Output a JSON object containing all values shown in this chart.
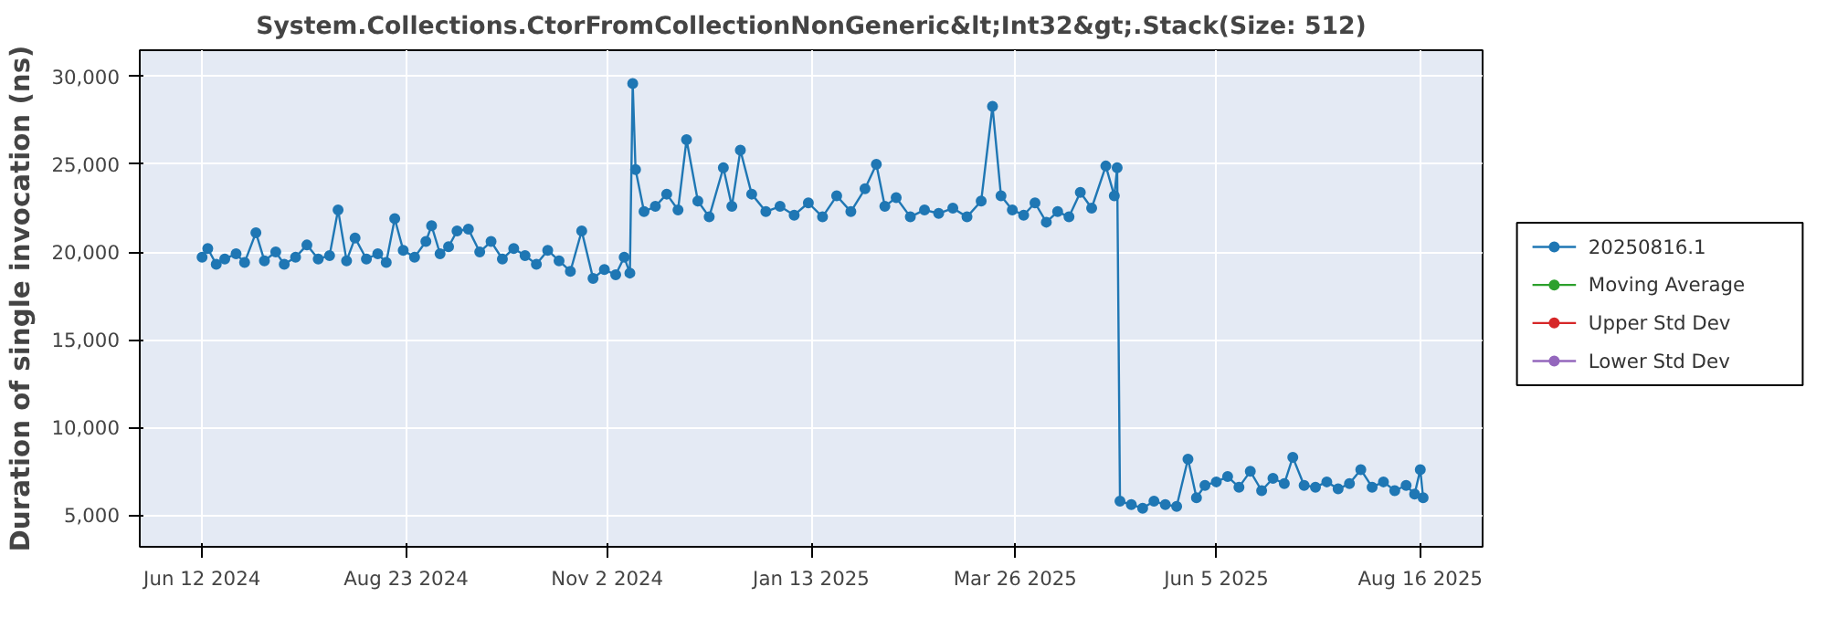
{
  "chart_data": {
    "type": "line",
    "title": "System.Collections.CtorFromCollectionNonGeneric&lt;Int32&gt;.Stack(Size: 512)",
    "ylabel": "Duration of single invocation (ns)",
    "xlim": [
      "2024-05-21",
      "2025-09-07"
    ],
    "ylim": [
      3200,
      31500
    ],
    "xticks": [
      {
        "value": "2024-06-12",
        "label": "Jun 12 2024"
      },
      {
        "value": "2024-08-23",
        "label": "Aug 23 2024"
      },
      {
        "value": "2024-11-02",
        "label": "Nov 2 2024"
      },
      {
        "value": "2025-01-13",
        "label": "Jan 13 2025"
      },
      {
        "value": "2025-03-26",
        "label": "Mar 26 2025"
      },
      {
        "value": "2025-06-05",
        "label": "Jun 5 2025"
      },
      {
        "value": "2025-08-16",
        "label": "Aug 16 2025"
      }
    ],
    "yticks": [
      {
        "value": 5000,
        "label": "5,000"
      },
      {
        "value": 10000,
        "label": "10,000"
      },
      {
        "value": 15000,
        "label": "15,000"
      },
      {
        "value": 20000,
        "label": "20,000"
      },
      {
        "value": 25000,
        "label": "25,000"
      },
      {
        "value": 30000,
        "label": "30,000"
      }
    ],
    "grid": true,
    "legend": "right",
    "marker": "circle",
    "line_style": "solid",
    "series": [
      {
        "name": "20250816.1",
        "color": "#1f77b4",
        "x": [
          "2024-06-12",
          "2024-06-14",
          "2024-06-17",
          "2024-06-20",
          "2024-06-24",
          "2024-06-27",
          "2024-07-01",
          "2024-07-04",
          "2024-07-08",
          "2024-07-11",
          "2024-07-15",
          "2024-07-19",
          "2024-07-23",
          "2024-07-27",
          "2024-07-30",
          "2024-08-02",
          "2024-08-05",
          "2024-08-09",
          "2024-08-13",
          "2024-08-16",
          "2024-08-19",
          "2024-08-22",
          "2024-08-26",
          "2024-08-30",
          "2024-09-01",
          "2024-09-04",
          "2024-09-07",
          "2024-09-10",
          "2024-09-14",
          "2024-09-18",
          "2024-09-22",
          "2024-09-26",
          "2024-09-30",
          "2024-10-04",
          "2024-10-08",
          "2024-10-12",
          "2024-10-16",
          "2024-10-20",
          "2024-10-24",
          "2024-10-28",
          "2024-11-01",
          "2024-11-05",
          "2024-11-08",
          "2024-11-10",
          "2024-11-11",
          "2024-11-12",
          "2024-11-15",
          "2024-11-19",
          "2024-11-23",
          "2024-11-27",
          "2024-11-30",
          "2024-12-04",
          "2024-12-08",
          "2024-12-13",
          "2024-12-16",
          "2024-12-19",
          "2024-12-23",
          "2024-12-28",
          "2025-01-02",
          "2025-01-07",
          "2025-01-12",
          "2025-01-17",
          "2025-01-22",
          "2025-01-27",
          "2025-02-01",
          "2025-02-05",
          "2025-02-08",
          "2025-02-12",
          "2025-02-17",
          "2025-02-22",
          "2025-02-27",
          "2025-03-04",
          "2025-03-09",
          "2025-03-14",
          "2025-03-18",
          "2025-03-21",
          "2025-03-25",
          "2025-03-29",
          "2025-04-02",
          "2025-04-06",
          "2025-04-10",
          "2025-04-14",
          "2025-04-18",
          "2025-04-22",
          "2025-04-27",
          "2025-04-30",
          "2025-05-01",
          "2025-05-02",
          "2025-05-06",
          "2025-05-10",
          "2025-05-14",
          "2025-05-18",
          "2025-05-22",
          "2025-05-26",
          "2025-05-29",
          "2025-06-01",
          "2025-06-05",
          "2025-06-09",
          "2025-06-13",
          "2025-06-17",
          "2025-06-21",
          "2025-06-25",
          "2025-06-29",
          "2025-07-02",
          "2025-07-06",
          "2025-07-10",
          "2025-07-14",
          "2025-07-18",
          "2025-07-22",
          "2025-07-26",
          "2025-07-30",
          "2025-08-03",
          "2025-08-07",
          "2025-08-11",
          "2025-08-14",
          "2025-08-16",
          "2025-08-17"
        ],
        "values": [
          19700,
          20200,
          19300,
          19600,
          19900,
          19400,
          21100,
          19500,
          20000,
          19300,
          19700,
          20400,
          19600,
          19800,
          22400,
          19500,
          20800,
          19600,
          19900,
          19400,
          21900,
          20100,
          19700,
          20600,
          21500,
          19900,
          20300,
          21200,
          21300,
          20000,
          20600,
          19600,
          20200,
          19800,
          19300,
          20100,
          19500,
          18900,
          21200,
          18500,
          19000,
          18700,
          19700,
          18800,
          29600,
          24700,
          22300,
          22600,
          23300,
          22400,
          26400,
          22900,
          22000,
          24800,
          22600,
          25800,
          23300,
          22300,
          22600,
          22100,
          22800,
          22000,
          23200,
          22300,
          23600,
          25000,
          22600,
          23100,
          22000,
          22400,
          22200,
          22500,
          22000,
          22900,
          28300,
          23200,
          22400,
          22100,
          22800,
          21700,
          22300,
          22000,
          23400,
          22500,
          24900,
          23200,
          24800,
          5800,
          5600,
          5400,
          5800,
          5600,
          5500,
          8200,
          6000,
          6700,
          6900,
          7200,
          6600,
          7500,
          6400,
          7100,
          6800,
          8300,
          6700,
          6600,
          6900,
          6500,
          6800,
          7600,
          6600,
          6900,
          6400,
          6700,
          6200,
          7600,
          6000
        ]
      },
      {
        "name": "Moving Average",
        "color": "#2ca02c"
      },
      {
        "name": "Upper Std Dev",
        "color": "#d62728"
      },
      {
        "name": "Lower Std Dev",
        "color": "#9467bd"
      }
    ]
  }
}
